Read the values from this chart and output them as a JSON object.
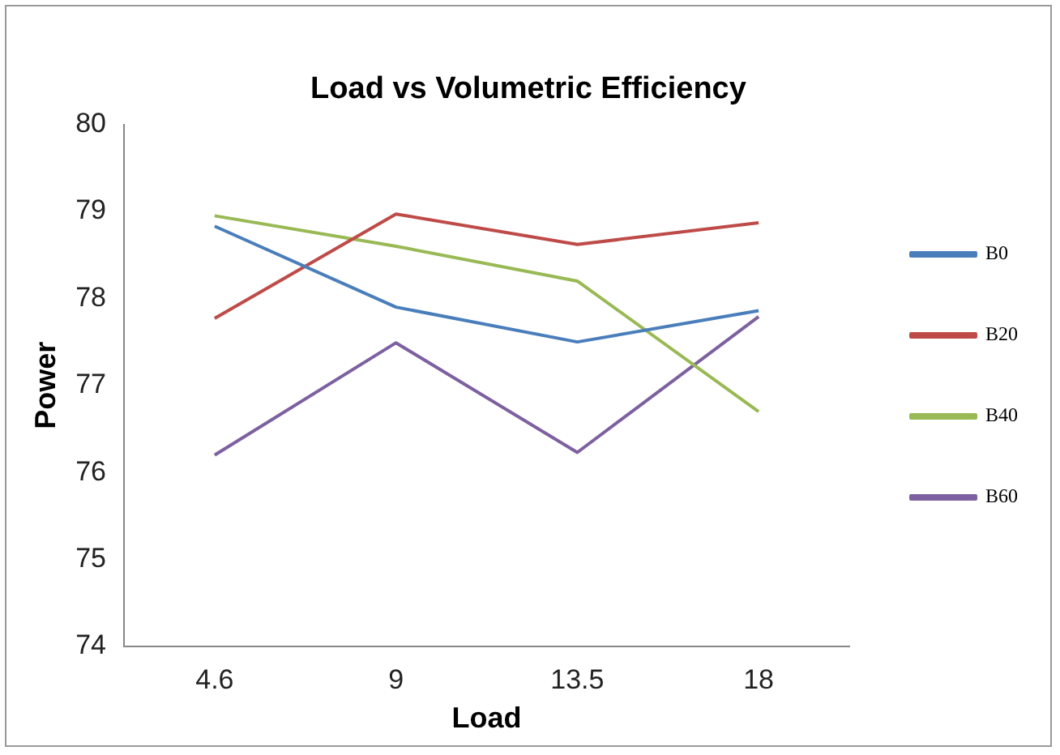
{
  "chart_data": {
    "type": "line",
    "title": "Load vs Volumetric Efficiency",
    "xlabel": "Load",
    "ylabel": "Power",
    "categories": [
      "4.6",
      "9",
      "13.5",
      "18"
    ],
    "series": [
      {
        "name": "B0",
        "color": "#4a7ebb",
        "values": [
          78.83,
          77.9,
          77.5,
          77.86
        ]
      },
      {
        "name": "B20",
        "color": "#be4b48",
        "values": [
          77.77,
          78.97,
          78.62,
          78.87
        ]
      },
      {
        "name": "B40",
        "color": "#98b954",
        "values": [
          78.95,
          78.6,
          78.2,
          76.7
        ]
      },
      {
        "name": "B60",
        "color": "#7d60a0",
        "values": [
          76.2,
          77.49,
          76.23,
          77.79
        ]
      }
    ],
    "ylim": [
      74,
      80
    ],
    "yticks": [
      74,
      75,
      76,
      77,
      78,
      79,
      80
    ],
    "grid": false,
    "legend": "right",
    "marker": "none",
    "line_style": "solid"
  }
}
